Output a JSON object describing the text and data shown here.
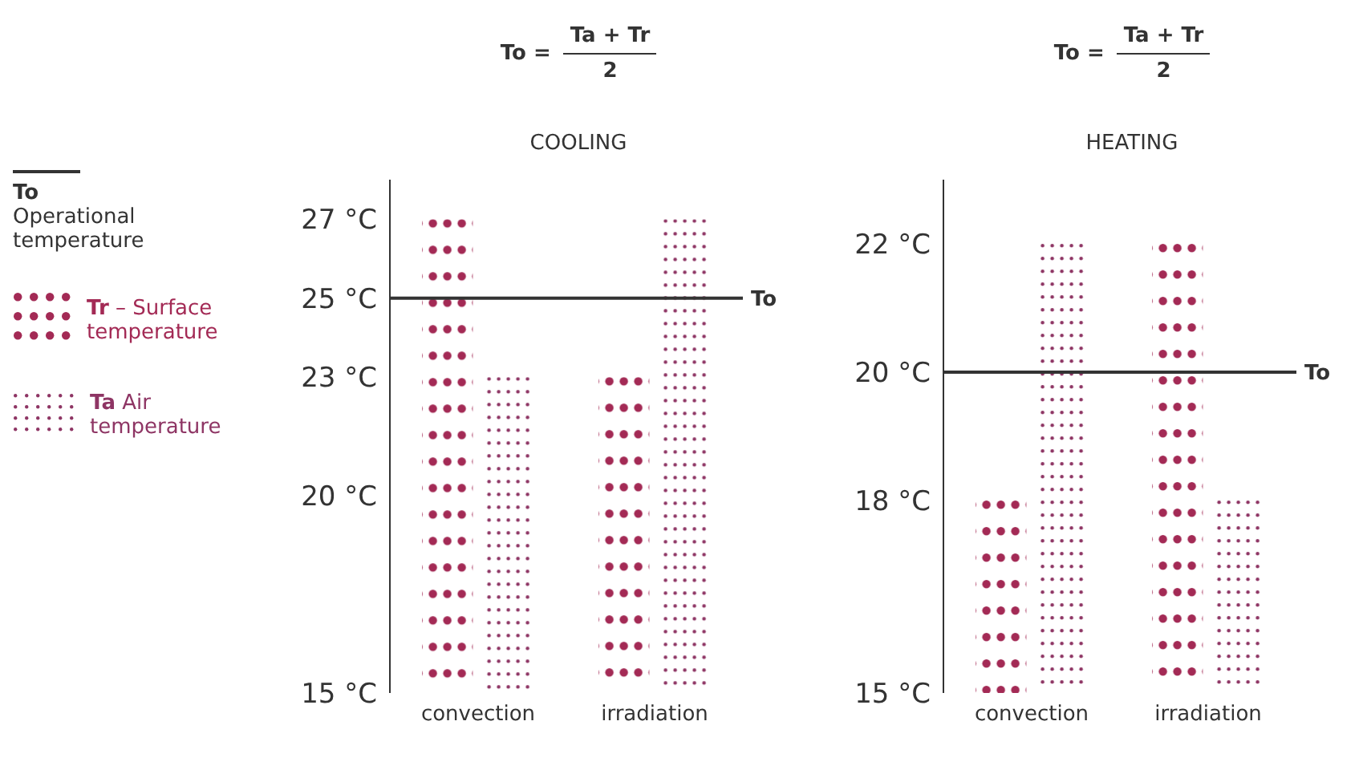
{
  "chart_data": [
    {
      "type": "bar",
      "title": "To =",
      "subtitle": "COOLING",
      "categories": [
        "convection",
        "irradiation"
      ],
      "series": [
        {
          "name": "Tr – Surface temperature",
          "color": "#a32a55",
          "values": [
            27,
            23
          ],
          "marker": "circle"
        },
        {
          "name": "Ta Air temperature",
          "color": "#8e3564",
          "values": [
            23,
            27
          ],
          "marker": "dotted"
        }
      ],
      "ylim": [
        15,
        28
      ],
      "yticks": [
        {
          "value": 15,
          "label": "15 °C"
        },
        {
          "value": 20,
          "label": "20 °C"
        },
        {
          "value": 23,
          "label": "23 °C"
        },
        {
          "value": 25,
          "label": "25 °C"
        },
        {
          "value": 27,
          "label": "27 °C"
        }
      ],
      "ref_lines": [
        {
          "axis": "y",
          "value": 25,
          "label": "To",
          "color": "#333333"
        }
      ],
      "annotations": [
        "Ta + Tr",
        "2",
        "To Operational temperature"
      ],
      "legend": "left",
      "grid": false
    },
    {
      "type": "bar",
      "title": "To =",
      "subtitle": "HEATING",
      "categories": [
        "convection",
        "irradiation"
      ],
      "series": [
        {
          "color": "#a32a55",
          "values": [
            18,
            22
          ],
          "marker": "circle"
        },
        {
          "color": "#8e3564",
          "values": [
            22,
            18
          ],
          "marker": "dotted"
        }
      ],
      "ylim": [
        15,
        23
      ],
      "yticks": [
        {
          "value": 15,
          "label": "15 °C"
        },
        {
          "value": 18,
          "label": "18 °C"
        },
        {
          "value": 20,
          "label": "20 °C"
        },
        {
          "value": 22,
          "label": "22 °C"
        }
      ],
      "ref_lines": [
        {
          "axis": "y",
          "value": 20,
          "label": "To",
          "color": "#333333"
        }
      ],
      "annotations": [
        "Ta + Tr",
        "2"
      ],
      "grid": false
    }
  ]
}
